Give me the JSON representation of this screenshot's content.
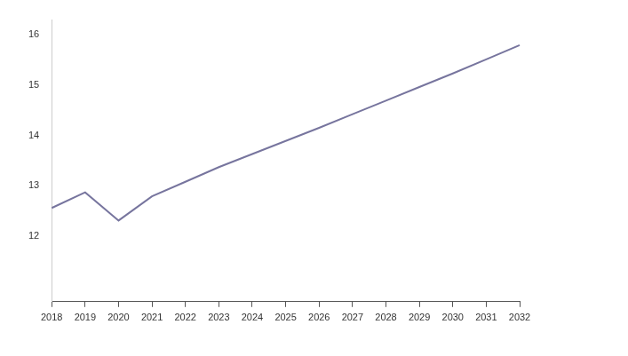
{
  "chart_data": {
    "type": "line",
    "categories": [
      "2018",
      "2019",
      "2020",
      "2021",
      "2022",
      "2023",
      "2024",
      "2025",
      "2026",
      "2027",
      "2028",
      "2029",
      "2030",
      "2031",
      "2032"
    ],
    "values": [
      12.56,
      12.87,
      12.31,
      12.79,
      13.08,
      13.37,
      13.63,
      13.89,
      14.15,
      14.42,
      14.69,
      14.96,
      15.23,
      15.51,
      15.79
    ],
    "color": "#77759e",
    "ylim": [
      10.7,
      16.3
    ],
    "yticks": [
      12,
      13,
      14,
      15,
      16
    ],
    "grid": false
  }
}
